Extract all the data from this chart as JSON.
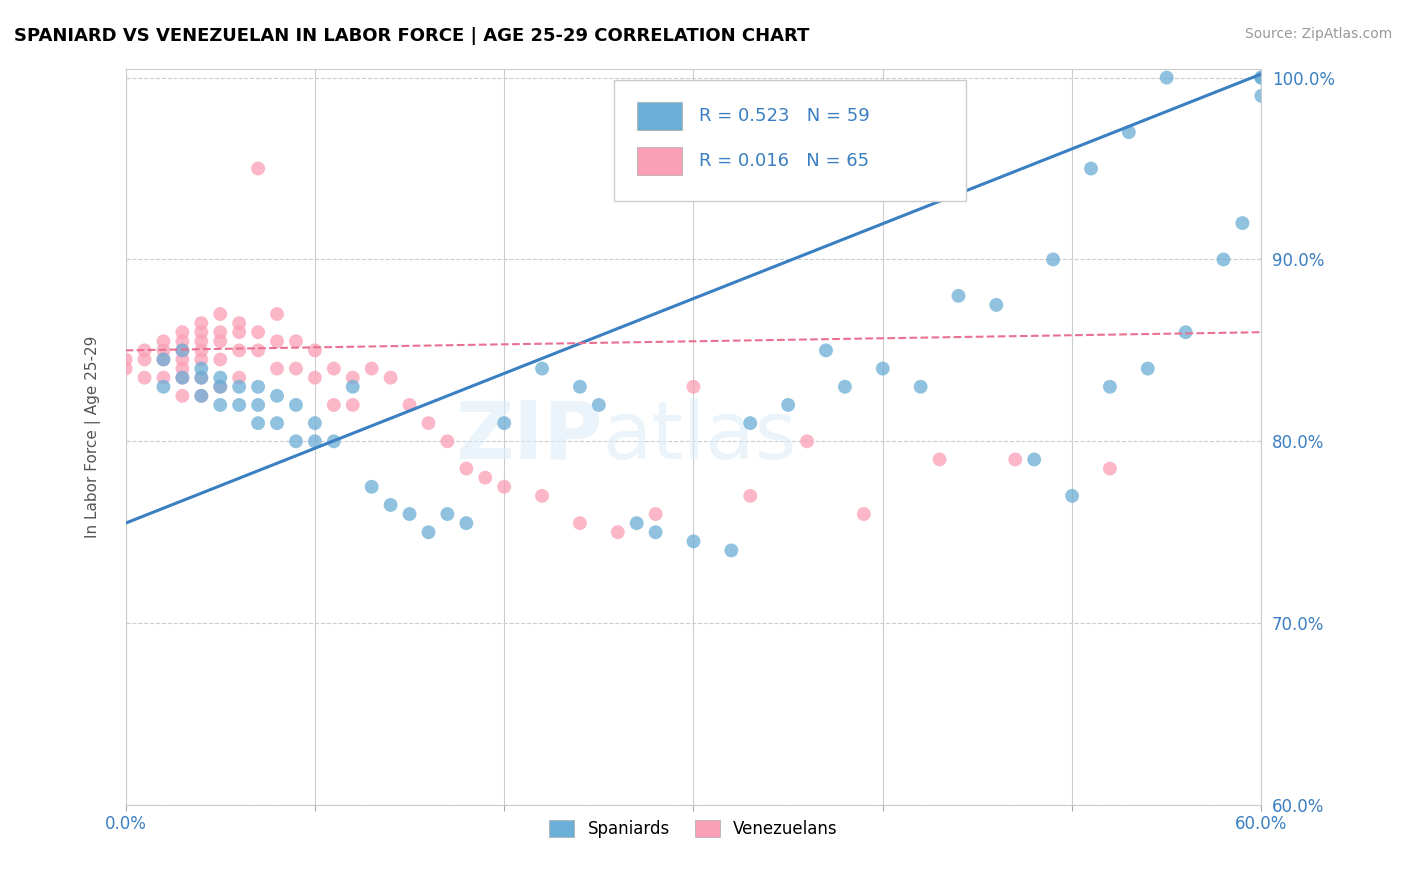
{
  "title": "SPANIARD VS VENEZUELAN IN LABOR FORCE | AGE 25-29 CORRELATION CHART",
  "source_text": "Source: ZipAtlas.com",
  "ylabel": "In Labor Force | Age 25-29",
  "xlim": [
    0.0,
    0.6
  ],
  "ylim": [
    0.6,
    1.005
  ],
  "xticks": [
    0.0,
    0.1,
    0.2,
    0.3,
    0.4,
    0.5,
    0.6
  ],
  "xticklabels": [
    "0.0%",
    "",
    "",
    "",
    "",
    "",
    "60.0%"
  ],
  "yticks": [
    0.6,
    0.7,
    0.8,
    0.9,
    1.0
  ],
  "yticklabels": [
    "60.0%",
    "70.0%",
    "80.0%",
    "90.0%",
    "100.0%"
  ],
  "blue_R": 0.523,
  "blue_N": 59,
  "pink_R": 0.016,
  "pink_N": 65,
  "blue_color": "#6baed6",
  "pink_color": "#fa9fb5",
  "blue_line_color": "#3a7fc1",
  "pink_line_color": "#e87090",
  "watermark_zip": "ZIP",
  "watermark_atlas": "atlas",
  "legend_label_blue": "Spaniards",
  "legend_label_pink": "Venezuelans",
  "blue_scatter_x": [
    0.02,
    0.02,
    0.03,
    0.03,
    0.04,
    0.04,
    0.04,
    0.05,
    0.05,
    0.05,
    0.06,
    0.06,
    0.07,
    0.07,
    0.07,
    0.08,
    0.08,
    0.09,
    0.09,
    0.1,
    0.1,
    0.11,
    0.12,
    0.13,
    0.14,
    0.15,
    0.16,
    0.17,
    0.18,
    0.2,
    0.22,
    0.24,
    0.25,
    0.27,
    0.28,
    0.3,
    0.32,
    0.33,
    0.35,
    0.37,
    0.38,
    0.4,
    0.42,
    0.44,
    0.46,
    0.48,
    0.5,
    0.52,
    0.54,
    0.56,
    0.58,
    0.59,
    0.6,
    0.6,
    0.6,
    0.55,
    0.53,
    0.51,
    0.49
  ],
  "blue_scatter_y": [
    0.845,
    0.83,
    0.85,
    0.835,
    0.84,
    0.835,
    0.825,
    0.835,
    0.83,
    0.82,
    0.83,
    0.82,
    0.83,
    0.82,
    0.81,
    0.825,
    0.81,
    0.82,
    0.8,
    0.81,
    0.8,
    0.8,
    0.83,
    0.775,
    0.765,
    0.76,
    0.75,
    0.76,
    0.755,
    0.81,
    0.84,
    0.83,
    0.82,
    0.755,
    0.75,
    0.745,
    0.74,
    0.81,
    0.82,
    0.85,
    0.83,
    0.84,
    0.83,
    0.88,
    0.875,
    0.79,
    0.77,
    0.83,
    0.84,
    0.86,
    0.9,
    0.92,
    0.99,
    1.0,
    1.0,
    1.0,
    0.97,
    0.95,
    0.9
  ],
  "pink_scatter_x": [
    0.0,
    0.0,
    0.01,
    0.01,
    0.01,
    0.02,
    0.02,
    0.02,
    0.02,
    0.03,
    0.03,
    0.03,
    0.03,
    0.03,
    0.03,
    0.03,
    0.04,
    0.04,
    0.04,
    0.04,
    0.04,
    0.04,
    0.04,
    0.05,
    0.05,
    0.05,
    0.05,
    0.05,
    0.06,
    0.06,
    0.06,
    0.06,
    0.07,
    0.07,
    0.07,
    0.08,
    0.08,
    0.08,
    0.09,
    0.09,
    0.1,
    0.1,
    0.11,
    0.11,
    0.12,
    0.12,
    0.13,
    0.14,
    0.15,
    0.16,
    0.17,
    0.18,
    0.19,
    0.2,
    0.22,
    0.24,
    0.26,
    0.28,
    0.3,
    0.33,
    0.36,
    0.39,
    0.43,
    0.47,
    0.52
  ],
  "pink_scatter_y": [
    0.845,
    0.84,
    0.85,
    0.845,
    0.835,
    0.855,
    0.85,
    0.845,
    0.835,
    0.86,
    0.855,
    0.85,
    0.845,
    0.84,
    0.835,
    0.825,
    0.865,
    0.86,
    0.855,
    0.85,
    0.845,
    0.835,
    0.825,
    0.87,
    0.86,
    0.855,
    0.845,
    0.83,
    0.865,
    0.86,
    0.85,
    0.835,
    0.95,
    0.86,
    0.85,
    0.87,
    0.855,
    0.84,
    0.855,
    0.84,
    0.85,
    0.835,
    0.84,
    0.82,
    0.835,
    0.82,
    0.84,
    0.835,
    0.82,
    0.81,
    0.8,
    0.785,
    0.78,
    0.775,
    0.77,
    0.755,
    0.75,
    0.76,
    0.83,
    0.77,
    0.8,
    0.76,
    0.79,
    0.79,
    0.785
  ],
  "blue_trend_x0": 0.0,
  "blue_trend_y0": 0.755,
  "blue_trend_x1": 0.6,
  "blue_trend_y1": 1.002,
  "pink_trend_x0": 0.0,
  "pink_trend_y0": 0.85,
  "pink_trend_x1": 0.6,
  "pink_trend_y1": 0.86
}
